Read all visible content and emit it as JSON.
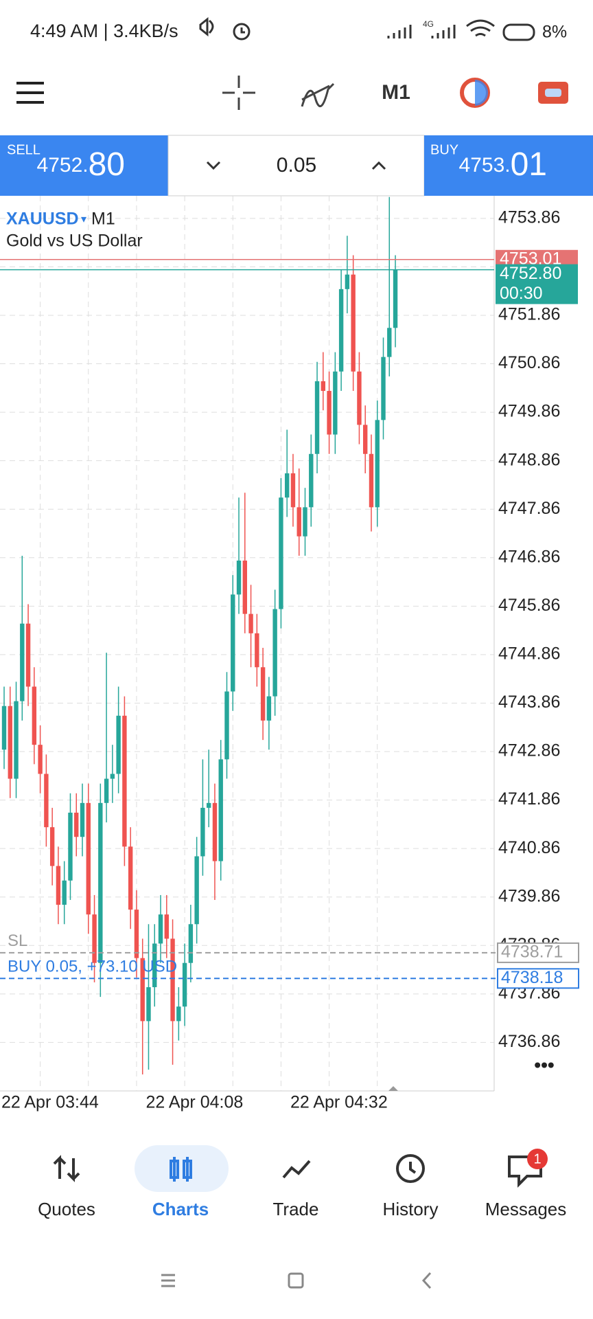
{
  "status_bar": {
    "time": "4:49 AM | 3.4KB/s",
    "network": "4G",
    "battery": "8%"
  },
  "toolbar": {
    "timeframe": "M1"
  },
  "trade_panel": {
    "sell": {
      "label": "SELL",
      "price_main": "4752.",
      "price_big": "80"
    },
    "volume": "0.05",
    "buy": {
      "label": "BUY",
      "price_main": "4753.",
      "price_big": "01"
    }
  },
  "chart_data": {
    "type": "candlestick",
    "symbol": "XAUUSD",
    "timeframe": "M1",
    "description": "Gold vs US Dollar",
    "categories": [
      "22 Apr 03:44",
      null,
      null,
      null,
      null,
      null,
      null,
      null,
      null,
      null,
      null,
      null,
      null,
      null,
      null,
      null,
      null,
      null,
      null,
      null,
      null,
      null,
      null,
      null,
      "22 Apr 04:08",
      null,
      null,
      null,
      null,
      null,
      null,
      null,
      null,
      null,
      null,
      null,
      null,
      null,
      null,
      null,
      null,
      null,
      null,
      null,
      null,
      null,
      null,
      null,
      "22 Apr 04:32",
      null,
      null,
      null,
      null,
      null,
      null,
      null,
      null,
      null,
      null,
      null,
      null,
      null,
      null,
      null,
      null,
      null
    ],
    "open": [
      4742.9,
      4743.8,
      4742.3,
      4743.9,
      4745.5,
      4744.2,
      4743.0,
      4742.4,
      4741.3,
      4740.5,
      4739.7,
      4740.2,
      4741.6,
      4741.1,
      4741.8,
      4739.5,
      4738.5,
      4741.8,
      4742.3,
      4742.4,
      4743.6,
      4740.9,
      4739.6,
      4738.6,
      4737.3,
      4738.0,
      4738.9,
      4739.5,
      4739.0,
      4737.3,
      4737.6,
      4738.5,
      4739.3,
      4740.7,
      4741.7,
      4741.8,
      4740.6,
      4742.7,
      4744.1,
      4746.1,
      4746.8,
      4745.7,
      4745.3,
      4744.6,
      4743.5,
      4744.0,
      4745.8,
      4748.1,
      4748.6,
      4747.9,
      4747.3,
      4747.9,
      4749.0,
      4750.5,
      4750.3,
      4749.4,
      4750.7,
      4752.4,
      4752.7,
      4750.7,
      4749.6,
      4749.0,
      4747.9,
      4749.7,
      4751.0,
      4751.6
    ],
    "high": [
      4744.2,
      4744.2,
      4744.3,
      4746.9,
      4745.9,
      4744.6,
      4743.4,
      4742.8,
      4741.7,
      4740.9,
      4740.6,
      4742.0,
      4742.0,
      4742.2,
      4742.2,
      4739.9,
      4742.2,
      4744.9,
      4743.0,
      4744.2,
      4744.0,
      4741.3,
      4740.0,
      4739.0,
      4739.3,
      4739.3,
      4739.9,
      4739.9,
      4739.4,
      4738.0,
      4738.9,
      4739.7,
      4741.1,
      4742.7,
      4742.9,
      4742.2,
      4743.1,
      4744.5,
      4746.5,
      4748.1,
      4748.2,
      4746.3,
      4745.7,
      4745.0,
      4744.4,
      4746.2,
      4748.5,
      4749.5,
      4749.0,
      4748.7,
      4748.3,
      4749.4,
      4750.9,
      4751.1,
      4750.7,
      4751.1,
      4752.8,
      4753.5,
      4753.1,
      4751.1,
      4750.0,
      4749.4,
      4750.1,
      4751.4,
      4754.3,
      4753.1
    ],
    "low": [
      4742.5,
      4741.9,
      4741.9,
      4743.5,
      4743.8,
      4742.6,
      4742.0,
      4740.9,
      4740.1,
      4739.3,
      4739.3,
      4739.8,
      4740.7,
      4740.7,
      4739.1,
      4738.1,
      4737.8,
      4741.4,
      4741.8,
      4742.0,
      4740.5,
      4739.2,
      4738.2,
      4736.2,
      4736.3,
      4737.6,
      4738.5,
      4738.6,
      4736.4,
      4736.9,
      4737.2,
      4738.1,
      4738.9,
      4740.3,
      4741.3,
      4739.8,
      4740.2,
      4742.3,
      4743.7,
      4745.7,
      4745.3,
      4744.6,
      4744.2,
      4743.1,
      4742.9,
      4743.6,
      4745.4,
      4747.7,
      4747.5,
      4746.9,
      4746.9,
      4747.5,
      4748.6,
      4749.9,
      4749.0,
      4749.0,
      4750.3,
      4751.9,
      4750.3,
      4749.2,
      4748.6,
      4747.4,
      4747.5,
      4749.3,
      4750.6,
      4751.2
    ],
    "close": [
      4743.8,
      4742.3,
      4743.9,
      4745.5,
      4744.2,
      4743.0,
      4742.4,
      4741.3,
      4740.5,
      4739.7,
      4740.2,
      4741.6,
      4741.1,
      4741.8,
      4739.5,
      4738.5,
      4741.8,
      4742.3,
      4742.4,
      4743.6,
      4740.9,
      4739.6,
      4738.6,
      4737.3,
      4738.0,
      4738.9,
      4739.5,
      4739.0,
      4737.3,
      4737.6,
      4738.5,
      4739.3,
      4740.7,
      4741.7,
      4741.8,
      4740.6,
      4742.7,
      4744.1,
      4746.1,
      4746.8,
      4745.7,
      4745.3,
      4744.6,
      4743.5,
      4744.0,
      4745.8,
      4748.1,
      4748.6,
      4747.9,
      4747.3,
      4747.9,
      4749.0,
      4750.5,
      4750.3,
      4749.4,
      4750.7,
      4752.4,
      4752.7,
      4750.7,
      4749.6,
      4749.0,
      4747.9,
      4749.7,
      4751.0,
      4751.6,
      4752.8
    ],
    "up_color": "#26a69a",
    "down_color": "#ef5350",
    "ylim": [
      4735.86,
      4754.24
    ],
    "yticks": [
      4736.86,
      4737.86,
      4738.86,
      4739.86,
      4740.86,
      4741.86,
      4742.86,
      4743.86,
      4744.86,
      4745.86,
      4746.86,
      4747.86,
      4748.86,
      4749.86,
      4750.86,
      4751.86,
      4752.86,
      4753.86
    ],
    "grid": true,
    "price_lines": [
      {
        "value": 4753.01,
        "color": "#e57373"
      },
      {
        "value": 4752.8,
        "label": "4752.80",
        "timer": "00:30",
        "color": "#26a69a"
      }
    ],
    "order_lines": [
      {
        "value": 4738.71,
        "label": "SL",
        "color": "#9e9e9e"
      },
      {
        "value": 4738.18,
        "label": "BUY 0.05, +73.10 USD",
        "color": "#2f7de1"
      }
    ]
  },
  "bottom_nav": {
    "items": [
      {
        "label": "Quotes"
      },
      {
        "label": "Charts"
      },
      {
        "label": "Trade"
      },
      {
        "label": "History"
      },
      {
        "label": "Messages"
      }
    ],
    "badge": "1"
  }
}
